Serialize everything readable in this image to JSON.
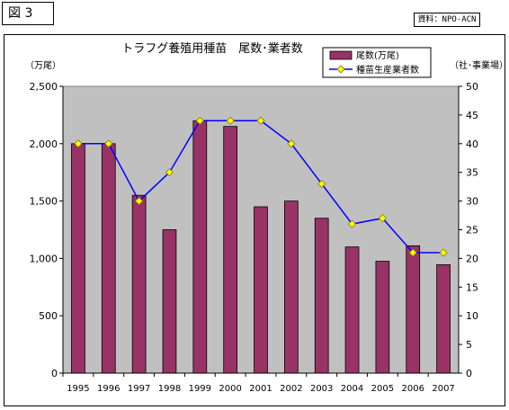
{
  "figure_label": "図 3",
  "source_label": "資料：NPO-ACN",
  "chart_data": {
    "type": "bar",
    "title": "トラフグ養殖用種苗　尾数･業者数",
    "categories": [
      "1995",
      "1996",
      "1997",
      "1998",
      "1999",
      "2000",
      "2001",
      "2002",
      "2003",
      "2004",
      "2005",
      "2006",
      "2007"
    ],
    "ylabel_left": "（万尾）",
    "ylabel_right": "（社･事業場）",
    "ylim_left": [
      0,
      2500
    ],
    "ylim_right": [
      0,
      50
    ],
    "yticks_left": [
      "0",
      "500",
      "1,000",
      "1,500",
      "2,000",
      "2,500"
    ],
    "yticks_right": [
      "0",
      "5",
      "10",
      "15",
      "20",
      "25",
      "30",
      "35",
      "40",
      "45",
      "50"
    ],
    "grid": false,
    "legend_position": "top-right",
    "series": [
      {
        "name": "尾数(万尾)",
        "type": "bar",
        "axis": "left",
        "color": "#993366",
        "values": [
          2000,
          2000,
          1550,
          1250,
          2200,
          2150,
          1450,
          1500,
          1350,
          1100,
          975,
          1110,
          945
        ]
      },
      {
        "name": "種苗生産業者数",
        "type": "line",
        "axis": "right",
        "color": "#0000ff",
        "marker_color": "#ffff00",
        "values": [
          40,
          40,
          30,
          35,
          44,
          44,
          44,
          40,
          33,
          26,
          27,
          21,
          21
        ]
      }
    ],
    "plot_background": "#c0c0c0"
  }
}
